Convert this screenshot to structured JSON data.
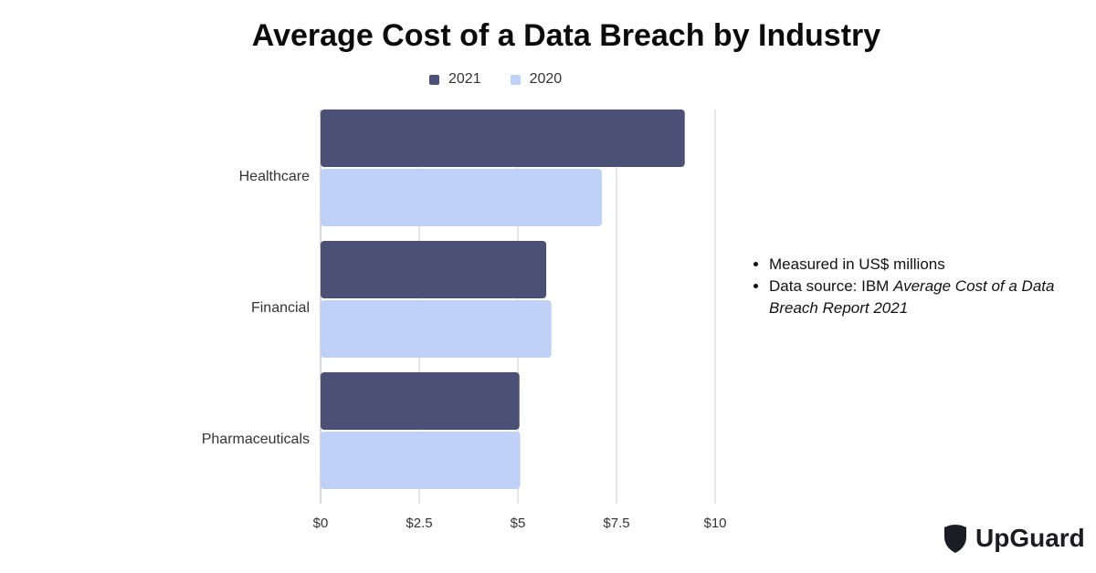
{
  "title": "Average Cost of a Data Breach by Industry",
  "colors": {
    "series_2021": "#4b5077",
    "series_2020": "#bfd1f7",
    "grid": "#cccccc",
    "text": "#333333"
  },
  "notes": {
    "bullet1": "Measured in US$ millions",
    "bullet2_prefix": "Data source: IBM ",
    "bullet2_italic": "Average Cost of a Data Breach Report 2021"
  },
  "brand": {
    "name": "UpGuard",
    "icon": "upguard-shield-icon"
  },
  "chart_data": {
    "type": "bar",
    "orientation": "horizontal",
    "title": "Average Cost of a Data Breach by Industry",
    "categories": [
      "Healthcare",
      "Financial",
      "Pharmaceuticals"
    ],
    "series": [
      {
        "name": "2021",
        "values": [
          9.23,
          5.72,
          5.04
        ],
        "color": "#4b5077"
      },
      {
        "name": "2020",
        "values": [
          7.13,
          5.85,
          5.06
        ],
        "color": "#bfd1f7"
      }
    ],
    "xlim": [
      0,
      10
    ],
    "xticks": [
      0,
      2.5,
      5,
      7.5,
      10
    ],
    "xtick_labels": [
      "$0",
      "$2.5",
      "$5",
      "$7.5",
      "$10"
    ],
    "grid": true,
    "legend_position": "top"
  }
}
